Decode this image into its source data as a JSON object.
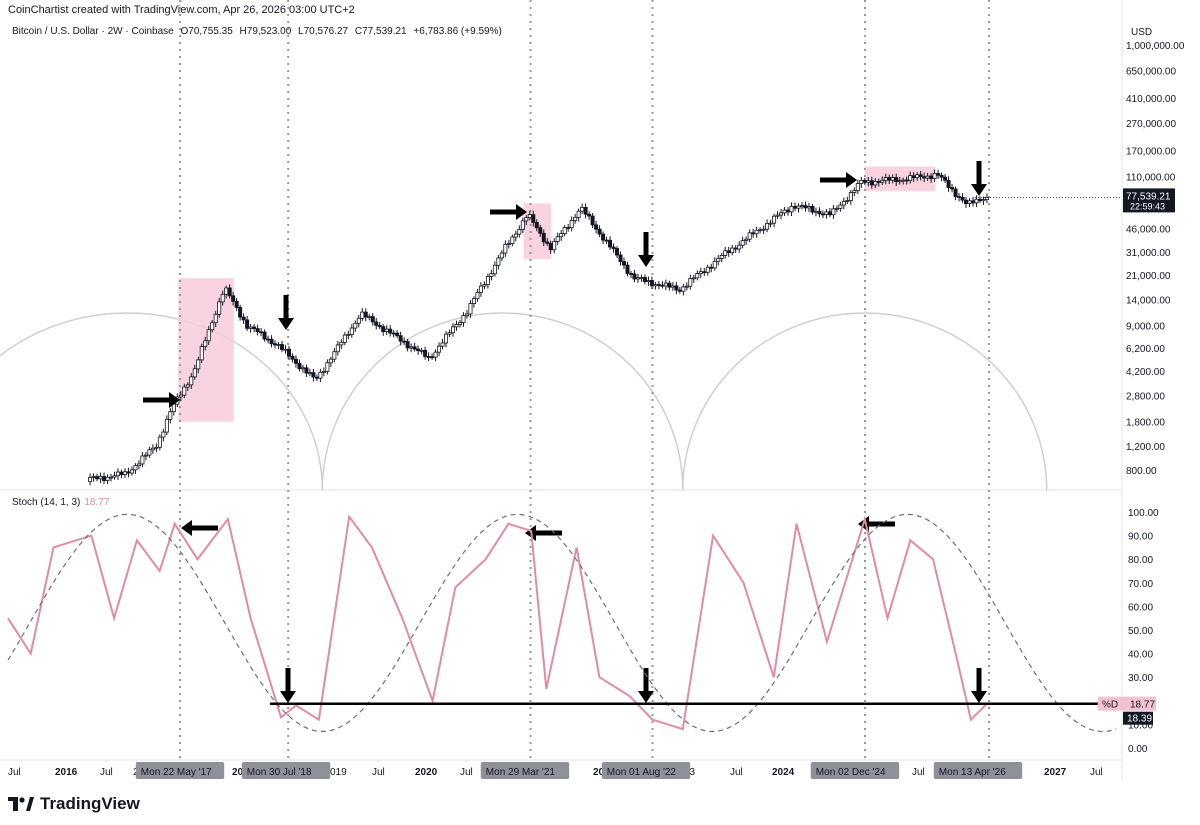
{
  "header": {
    "created_by": "CoinChartist created with TradingView.com, Apr 26, 2026 03:00 UTC+2",
    "symbol": "Bitcoin / U.S. Dollar · 2W · Coinbase",
    "open": "O70,755.35",
    "high": "H79,523.00",
    "low": "L70,576.27",
    "close": "C77,539.21",
    "change": "+6,783.86 (+9.59%)",
    "currency": "USD"
  },
  "brand": "TradingView",
  "colors": {
    "price_up": "#131722",
    "stoch_k": "#e48aa5",
    "highlight": "#f8cbd9",
    "cycle": "#cfcfcf",
    "support": "#000000"
  },
  "price_pane": {
    "y_ticks": [
      "1,000,000.00",
      "650,000.00",
      "410,000.00",
      "270,000.00",
      "170,000.00",
      "110,000.00",
      "71,000.00",
      "46,000.00",
      "31,000.00",
      "21,000.00",
      "14,000.00",
      "9,000.00",
      "6,200.00",
      "4,200.00",
      "2,800.00",
      "1,800.00",
      "1,200.00",
      "800.00"
    ],
    "last_price": "77,539.21",
    "countdown": "22:59:43"
  },
  "stoch_pane": {
    "label": "Stoch (14, 1, 3)",
    "label_value": "18.77",
    "y_ticks": [
      "100.00",
      "90.00",
      "80.00",
      "70.00",
      "60.00",
      "50.00",
      "40.00",
      "30.00",
      "20.00",
      "10.00",
      "0.00"
    ],
    "d_label": "%D",
    "d_value": "18.77",
    "k_value": "18.39"
  },
  "x_axis": {
    "labels": [
      "Jul",
      "2016",
      "Jul",
      "2",
      "2018",
      "019",
      "Jul",
      "2020",
      "Jul",
      "2022",
      "23",
      "Jul",
      "2024",
      "Jul",
      "2027",
      "Jul"
    ],
    "markers": [
      "Mon 22 May '17",
      "Mon 30 Jul '18",
      "Mon 29 Mar '21",
      "Mon 01 Aug '22",
      "Mon 02 Dec '24",
      "Mon 13 Apr '26"
    ]
  },
  "chart_data": {
    "type": "line",
    "title": "Bitcoin / U.S. Dollar · 2W · Coinbase",
    "series": [
      {
        "name": "Bitcoin / U.S. Dollar",
        "scale": "log",
        "x": [
          "2015-10",
          "2016-01",
          "2016-06",
          "2016-11",
          "2017-03",
          "2017-05",
          "2017-08",
          "2017-12",
          "2018-03",
          "2018-07",
          "2018-12",
          "2019-06",
          "2020-03",
          "2020-08",
          "2021-01",
          "2021-04",
          "2021-07",
          "2021-11",
          "2022-06",
          "2022-12",
          "2023-06",
          "2024-03",
          "2024-08",
          "2024-12",
          "2025-06",
          "2025-10",
          "2026-02",
          "2026-04"
        ],
        "values": [
          650,
          420,
          680,
          750,
          1200,
          2200,
          4200,
          17000,
          9000,
          6500,
          3600,
          11000,
          5200,
          11500,
          33000,
          58000,
          33000,
          65000,
          20000,
          16500,
          30000,
          68000,
          58000,
          100000,
          106000,
          114000,
          68000,
          77539.21
        ]
      },
      {
        "name": "Stoch (14, 1, 3)",
        "x": [
          "2015-07",
          "2015-10",
          "2016-01",
          "2016-06",
          "2016-09",
          "2016-12",
          "2017-03",
          "2017-05",
          "2017-08",
          "2017-12",
          "2018-03",
          "2018-07",
          "2018-09",
          "2018-12",
          "2019-04",
          "2019-07",
          "2019-11",
          "2020-03",
          "2020-06",
          "2020-10",
          "2021-01",
          "2021-04",
          "2021-06",
          "2021-10",
          "2022-01",
          "2022-05",
          "2022-08",
          "2022-12",
          "2023-04",
          "2023-08",
          "2023-12",
          "2024-03",
          "2024-07",
          "2024-12",
          "2025-03",
          "2025-06",
          "2025-09",
          "2025-12",
          "2026-02",
          "2026-04"
        ],
        "values": [
          55,
          40,
          85,
          90,
          55,
          88,
          75,
          95,
          80,
          97,
          55,
          13,
          18,
          12,
          98,
          85,
          55,
          20,
          68,
          80,
          95,
          92,
          25,
          85,
          30,
          22,
          12,
          8,
          90,
          70,
          30,
          95,
          45,
          97,
          55,
          88,
          80,
          40,
          12,
          18.39
        ]
      }
    ],
    "annotations": [
      "Mon 22 May '17",
      "Mon 30 Jul '18",
      "Mon 29 Mar '21",
      "Mon 01 Aug '22",
      "Mon 02 Dec '24",
      "Mon 13 Apr '26"
    ],
    "support_level": 18.77
  }
}
